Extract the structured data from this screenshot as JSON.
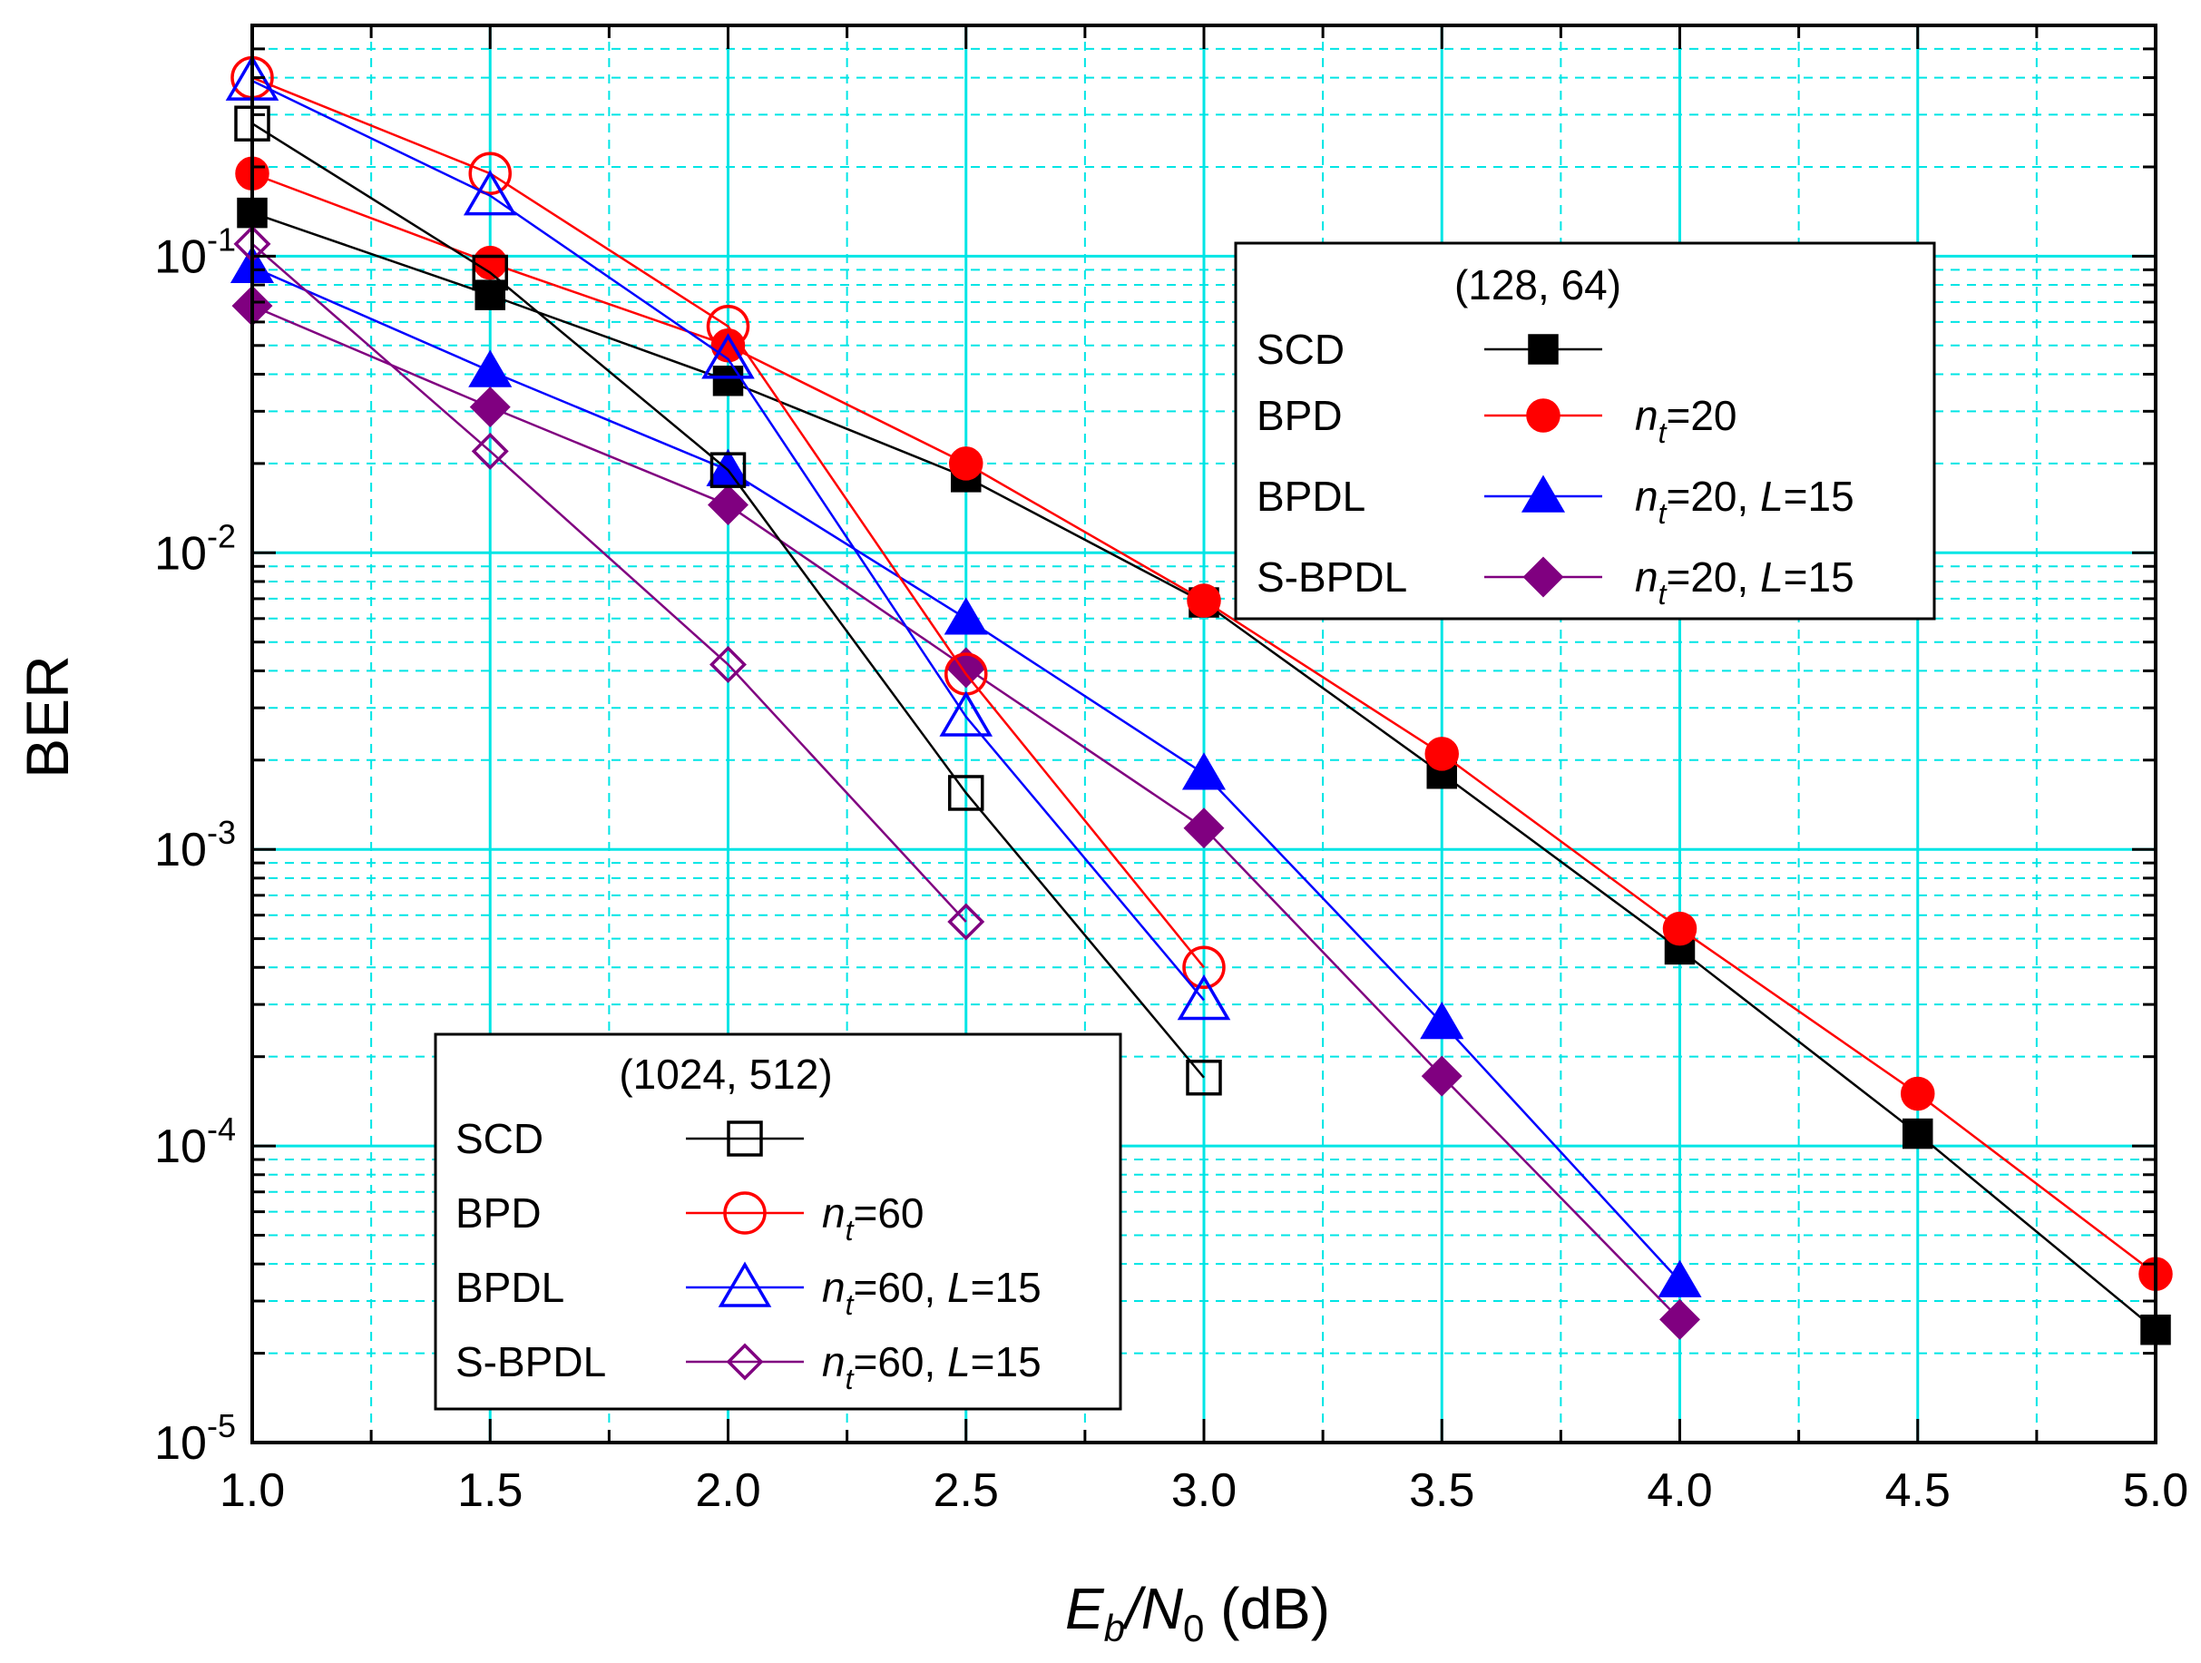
{
  "chart_data": {
    "type": "line",
    "title": "",
    "xlabel": {
      "E": "E",
      "b": "b",
      "slash": "/N",
      "zero": "0",
      "unit": " (dB)"
    },
    "ylabel": "BER",
    "y_scale": "log",
    "xlim": [
      1.0,
      5.0
    ],
    "ylim": [
      1e-05,
      0.6
    ],
    "grid": true,
    "x_ticks": [
      {
        "value": 1.0,
        "label": "1.0"
      },
      {
        "value": 1.5,
        "label": "1.5"
      },
      {
        "value": 2.0,
        "label": "2.0"
      },
      {
        "value": 2.5,
        "label": "2.5"
      },
      {
        "value": 3.0,
        "label": "3.0"
      },
      {
        "value": 3.5,
        "label": "3.5"
      },
      {
        "value": 4.0,
        "label": "4.0"
      },
      {
        "value": 4.5,
        "label": "4.5"
      },
      {
        "value": 5.0,
        "label": "5.0"
      }
    ],
    "y_ticks": [
      {
        "exp": -1,
        "base": "10",
        "sup": "-1"
      },
      {
        "exp": -2,
        "base": "10",
        "sup": "-2"
      },
      {
        "exp": -3,
        "base": "10",
        "sup": "-3"
      },
      {
        "exp": -4,
        "base": "10",
        "sup": "-4"
      },
      {
        "exp": -5,
        "base": "10",
        "sup": "-5"
      }
    ],
    "legends": [
      {
        "title": "(128, 64)",
        "placement": "upper-right",
        "entries": [
          {
            "label": "SCD",
            "param": [],
            "series": 0
          },
          {
            "label": "BPD",
            "param": [
              {
                "t": "n",
                "i": true
              },
              {
                "t": "t",
                "sub": true,
                "i": true
              },
              {
                "t": "=20"
              }
            ],
            "series": 1
          },
          {
            "label": "BPDL",
            "param": [
              {
                "t": "n",
                "i": true
              },
              {
                "t": "t",
                "sub": true,
                "i": true
              },
              {
                "t": "=20, "
              },
              {
                "t": "L",
                "i": true
              },
              {
                "t": "=15"
              }
            ],
            "series": 2
          },
          {
            "label": "S-BPDL",
            "param": [
              {
                "t": "n",
                "i": true
              },
              {
                "t": "t",
                "sub": true,
                "i": true
              },
              {
                "t": "=20, "
              },
              {
                "t": "L",
                "i": true
              },
              {
                "t": "=15"
              }
            ],
            "series": 3
          }
        ]
      },
      {
        "title": "(1024, 512)",
        "placement": "lower-left",
        "entries": [
          {
            "label": "SCD",
            "param": [],
            "series": 4
          },
          {
            "label": "BPD",
            "param": [
              {
                "t": "n",
                "i": true
              },
              {
                "t": "t",
                "sub": true,
                "i": true
              },
              {
                "t": "=60"
              }
            ],
            "series": 5
          },
          {
            "label": "BPDL",
            "param": [
              {
                "t": "n",
                "i": true
              },
              {
                "t": "t",
                "sub": true,
                "i": true
              },
              {
                "t": "=60, "
              },
              {
                "t": "L",
                "i": true
              },
              {
                "t": "=15"
              }
            ],
            "series": 6
          },
          {
            "label": "S-BPDL",
            "param": [
              {
                "t": "n",
                "i": true
              },
              {
                "t": "t",
                "sub": true,
                "i": true
              },
              {
                "t": "=60, "
              },
              {
                "t": "L",
                "i": true
              },
              {
                "t": "=15"
              }
            ],
            "series": 7
          }
        ]
      }
    ],
    "series": [
      {
        "key": "scd-128",
        "color": "#000000",
        "marker": "square",
        "filled": true,
        "x": [
          1.0,
          1.5,
          2.0,
          2.5,
          3.0,
          3.5,
          4.0,
          4.5,
          5.0
        ],
        "y": [
          0.14,
          0.074,
          0.038,
          0.018,
          0.0068,
          0.0018,
          0.00046,
          0.00011,
          2.4e-05
        ]
      },
      {
        "key": "bpd-128",
        "color": "#ff0000",
        "marker": "circle",
        "filled": true,
        "x": [
          1.0,
          1.5,
          2.0,
          2.5,
          3.0,
          3.5,
          4.0,
          4.5,
          5.0
        ],
        "y": [
          0.19,
          0.095,
          0.05,
          0.02,
          0.0069,
          0.0021,
          0.00054,
          0.00015,
          3.7e-05
        ]
      },
      {
        "key": "bpdl-128",
        "color": "#0000ff",
        "marker": "triangle",
        "filled": true,
        "x": [
          1.0,
          1.5,
          2.0,
          2.5,
          3.0,
          3.5,
          4.0
        ],
        "y": [
          0.092,
          0.041,
          0.019,
          0.006,
          0.0018,
          0.00026,
          3.5e-05
        ]
      },
      {
        "key": "sbpdl-128",
        "color": "#800080",
        "marker": "diamond",
        "filled": true,
        "x": [
          1.0,
          1.5,
          2.0,
          2.5,
          3.0,
          3.5,
          4.0
        ],
        "y": [
          0.068,
          0.031,
          0.0145,
          0.0041,
          0.00118,
          0.000172,
          2.6e-05
        ]
      },
      {
        "key": "scd-1024",
        "color": "#000000",
        "marker": "square",
        "filled": false,
        "x": [
          1.0,
          1.5,
          2.0,
          2.5,
          3.0
        ],
        "y": [
          0.28,
          0.088,
          0.019,
          0.00155,
          0.00017
        ]
      },
      {
        "key": "bpd-1024",
        "color": "#ff0000",
        "marker": "circle",
        "filled": false,
        "x": [
          1.0,
          1.5,
          2.0,
          2.5,
          3.0
        ],
        "y": [
          0.4,
          0.19,
          0.058,
          0.0039,
          0.0004
        ]
      },
      {
        "key": "bpdl-1024",
        "color": "#0000ff",
        "marker": "triangle",
        "filled": false,
        "x": [
          1.0,
          1.5,
          2.0,
          2.5,
          3.0
        ],
        "y": [
          0.39,
          0.16,
          0.045,
          0.0028,
          0.00031
        ]
      },
      {
        "key": "sbpdl-1024",
        "color": "#800080",
        "marker": "diamond",
        "filled": false,
        "x": [
          1.0,
          1.5,
          2.0,
          2.5
        ],
        "y": [
          0.11,
          0.022,
          0.0042,
          0.00057
        ]
      }
    ]
  }
}
